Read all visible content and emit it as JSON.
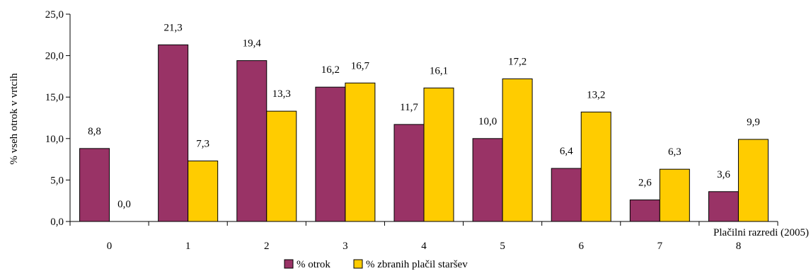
{
  "chart_data": {
    "type": "bar",
    "categories": [
      "0",
      "1",
      "2",
      "3",
      "4",
      "5",
      "6",
      "7",
      "8"
    ],
    "series": [
      {
        "name": "% otrok",
        "color": "#993366",
        "values": [
          8.8,
          21.3,
          19.4,
          16.2,
          11.7,
          10.0,
          6.4,
          2.6,
          3.6
        ],
        "labels": [
          "8,8",
          "21,3",
          "19,4",
          "16,2",
          "11,7",
          "10,0",
          "6,4",
          "2,6",
          "3,6"
        ]
      },
      {
        "name": "% zbranih plačil staršev",
        "color": "#FFCC00",
        "values": [
          0.0,
          7.3,
          13.3,
          16.7,
          16.1,
          17.2,
          13.2,
          6.3,
          9.9
        ],
        "labels": [
          "0,0",
          "7,3",
          "13,3",
          "16,7",
          "16,1",
          "17,2",
          "13,2",
          "6,3",
          "9,9"
        ]
      }
    ],
    "xlabel": "Plačilni razredi (2005)",
    "ylabel": "% vseh otrok v vrtcih",
    "ylim": [
      0,
      25
    ],
    "yticks": [
      0,
      5,
      10,
      15,
      20,
      25
    ],
    "ytick_labels": [
      "0,0",
      "5,0",
      "10,0",
      "15,0",
      "20,0",
      "25,0"
    ],
    "legend_position": "bottom-center",
    "grid": false
  }
}
